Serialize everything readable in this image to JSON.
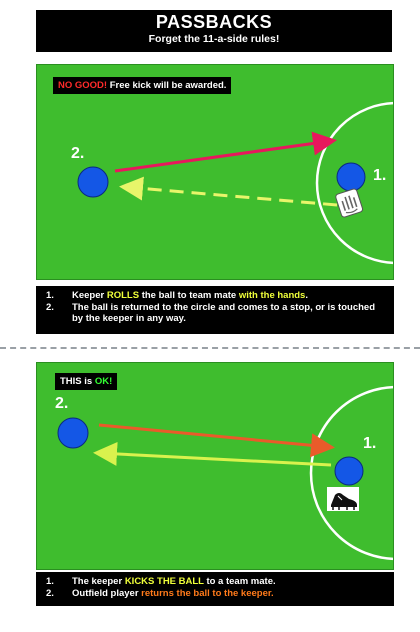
{
  "header": {
    "title": "PASSBACKS",
    "subtitle": "Forget the 11-a-side rules!"
  },
  "panel1": {
    "label_prefix": "NO GOOD!",
    "label_rest": " Free kick will be awarded.",
    "player2": "2.",
    "player1": "1.",
    "notes": [
      {
        "num": "1.",
        "parts": [
          {
            "text": "Keeper ",
            "hl": ""
          },
          {
            "text": "ROLLS",
            "hl": "yellow"
          },
          {
            "text": "  the ball to team mate ",
            "hl": ""
          },
          {
            "text": "with the hands",
            "hl": "yellow"
          },
          {
            "text": ".",
            "hl": ""
          }
        ]
      },
      {
        "num": "2.",
        "parts": [
          {
            "text": "The ball is returned to the circle and comes to a stop, or is touched by the keeper in any way.",
            "hl": ""
          }
        ]
      }
    ]
  },
  "panel2": {
    "label_prefix": "THIS is ",
    "label_ok": "OK!",
    "player2": "2.",
    "player1": "1.",
    "notes": [
      {
        "num": "1.",
        "parts": [
          {
            "text": "The keeper ",
            "hl": ""
          },
          {
            "text": "KICKS THE BALL",
            "hl": "yellow"
          },
          {
            "text": " to a team mate.",
            "hl": ""
          }
        ]
      },
      {
        "num": "2.",
        "parts": [
          {
            "text": "Outfield player ",
            "hl": ""
          },
          {
            "text": "returns the ball to the keeper.",
            "hl": "orange"
          }
        ]
      }
    ]
  },
  "colors": {
    "pitch": "#3fbd2e",
    "player": "#1457e6",
    "pass_red": "#e8175d",
    "return_yellow": "#e8f56a",
    "pass_orange": "#ea5b2a",
    "return_lime": "#d9f24d"
  },
  "icons": {
    "panel1": "glove-icon",
    "panel2": "football-boot-icon"
  }
}
